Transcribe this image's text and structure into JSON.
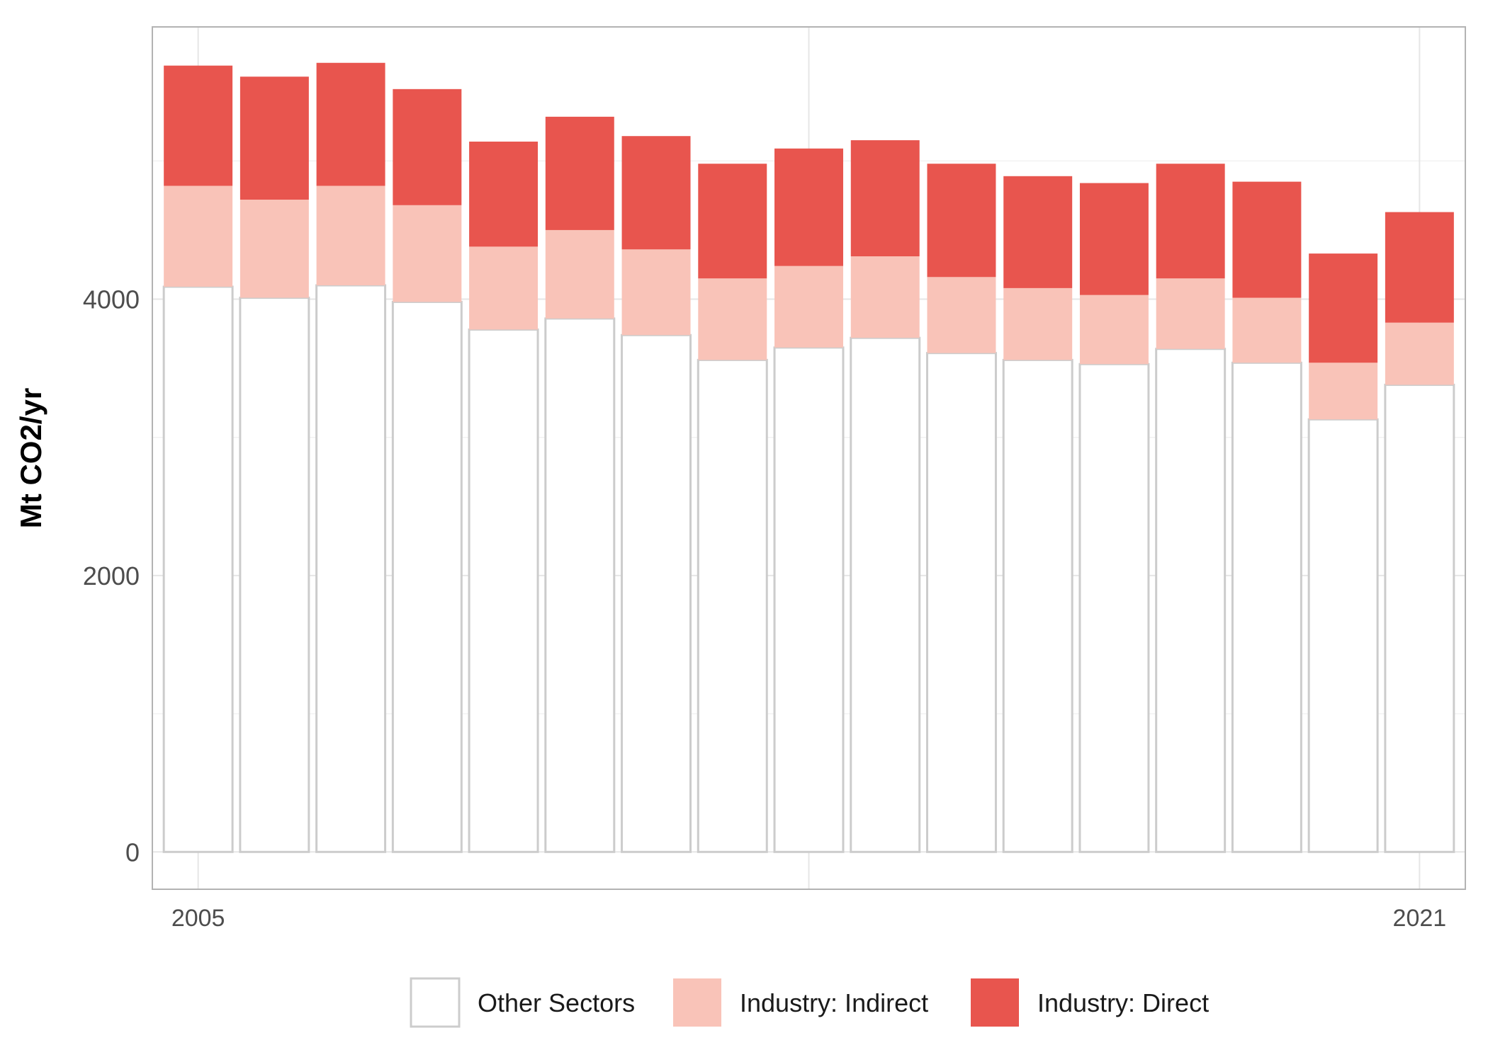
{
  "chart_data": {
    "type": "bar",
    "stacked": true,
    "title": "",
    "xlabel": "",
    "ylabel": "Mt CO2/yr",
    "ylim": [
      -270,
      5970
    ],
    "xlim": [
      2004.4,
      2021.6
    ],
    "x_ticks": [
      2005,
      2013,
      2021
    ],
    "x_tick_labels": [
      "2005",
      "",
      "2021"
    ],
    "y_ticks": [
      0,
      2000,
      4000
    ],
    "y_tick_labels": [
      "0",
      "2000",
      "4000"
    ],
    "y_minor_ticks": [
      1000,
      3000,
      5000
    ],
    "grid": true,
    "legend_position": "bottom",
    "categories": [
      2005,
      2006,
      2007,
      2008,
      2009,
      2010,
      2011,
      2012,
      2013,
      2014,
      2015,
      2016,
      2017,
      2018,
      2019,
      2020,
      2021
    ],
    "series": [
      {
        "name": "Other Sectors",
        "fill": "#ffffff",
        "stroke": "#cccccc",
        "values": [
          4090,
          4010,
          4100,
          3980,
          3780,
          3860,
          3740,
          3560,
          3650,
          3720,
          3610,
          3560,
          3530,
          3640,
          3540,
          3130,
          3380
        ]
      },
      {
        "name": "Industry: Indirect",
        "fill": "#f9c3b8",
        "stroke": "none",
        "values": [
          730,
          710,
          720,
          700,
          600,
          640,
          620,
          590,
          590,
          590,
          550,
          520,
          500,
          510,
          470,
          410,
          450
        ]
      },
      {
        "name": "Industry: Direct",
        "fill": "#e8554e",
        "stroke": "none",
        "values": [
          870,
          890,
          890,
          840,
          760,
          820,
          820,
          830,
          850,
          840,
          820,
          810,
          810,
          830,
          840,
          790,
          800
        ]
      }
    ]
  },
  "legend": {
    "items": [
      {
        "label": "Other Sectors",
        "fill": "#ffffff",
        "stroke": "#cccccc"
      },
      {
        "label": "Industry: Indirect",
        "fill": "#f9c3b8",
        "stroke": "none"
      },
      {
        "label": "Industry: Direct",
        "fill": "#e8554e",
        "stroke": "none"
      }
    ]
  },
  "colors": {
    "grid_major": "#e6e6e6",
    "grid_minor": "#f2f2f2",
    "panel_border": "#b3b3b3"
  }
}
